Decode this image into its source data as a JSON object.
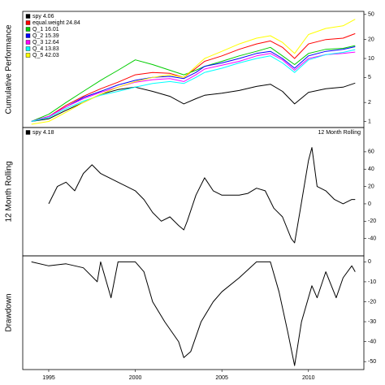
{
  "chart_data": [
    {
      "type": "line",
      "ylabel": "Cumulative Performance",
      "y_scale": "log",
      "legend": "top-left",
      "xlim": [
        1993.5,
        2013.2
      ],
      "ylim": [
        0.8,
        56
      ],
      "yticks": [
        1,
        2,
        5,
        10,
        20,
        50
      ],
      "x": [
        1994,
        1995,
        1996,
        1997,
        1998,
        1999,
        2000,
        2001,
        2002,
        2002.8,
        2003.5,
        2004,
        2005,
        2006,
        2007,
        2007.8,
        2008.5,
        2009.2,
        2010,
        2011,
        2012,
        2012.7
      ],
      "series": [
        {
          "name": "spy 4.06",
          "color": "#000000",
          "values": [
            1,
            1.1,
            1.5,
            2,
            2.7,
            3.2,
            3.5,
            3.0,
            2.5,
            1.9,
            2.3,
            2.6,
            2.8,
            3.1,
            3.6,
            3.9,
            3.0,
            1.9,
            2.9,
            3.3,
            3.5,
            4.06
          ]
        },
        {
          "name": "equal.weight 24.84",
          "color": "#ff0000",
          "values": [
            1,
            1.2,
            1.8,
            2.5,
            3.3,
            4.2,
            5.5,
            6.0,
            5.8,
            5.0,
            7.0,
            9.0,
            11,
            14,
            17,
            19,
            15,
            10,
            17,
            20,
            21,
            24.84
          ]
        },
        {
          "name": "Q_1 16.01",
          "color": "#00cc00",
          "values": [
            1,
            1.3,
            2.0,
            3.0,
            4.5,
            6.5,
            9.5,
            8.0,
            6.5,
            5.5,
            6.5,
            7.5,
            9,
            11,
            13,
            15,
            11,
            8,
            12,
            14,
            14.5,
            16.01
          ]
        },
        {
          "name": "Q_2 15.39",
          "color": "#0000ff",
          "values": [
            1,
            1.2,
            1.7,
            2.4,
            3.0,
            3.8,
            4.5,
            5.0,
            5.2,
            4.8,
            6.0,
            7.5,
            8.5,
            10,
            12,
            13,
            10,
            7,
            11,
            13,
            14,
            15.39
          ]
        },
        {
          "name": "Q_3 12.64",
          "color": "#ff00ff",
          "values": [
            1,
            1.2,
            1.7,
            2.3,
            2.9,
            3.5,
            4.2,
            4.6,
            4.8,
            4.3,
            5.5,
            6.8,
            7.8,
            9,
            11,
            12,
            9.5,
            6.5,
            10,
            11.5,
            12,
            12.64
          ]
        },
        {
          "name": "Q_4 13.83",
          "color": "#00ffff",
          "values": [
            1,
            1.15,
            1.6,
            2.1,
            2.6,
            3.0,
            3.5,
            4.0,
            4.3,
            4.0,
            5.0,
            6.0,
            7,
            8.5,
            10,
            11,
            8.5,
            6,
            9.5,
            11.5,
            12.5,
            13.83
          ]
        },
        {
          "name": "Q_5 42.03",
          "color": "#ffff00",
          "values": [
            0.9,
            1.0,
            1.4,
            2.0,
            2.7,
            3.5,
            4.3,
            5.0,
            5.5,
            5.0,
            7.5,
            10,
            13,
            17,
            21,
            23,
            18,
            12,
            24,
            30,
            33,
            42.03
          ]
        }
      ]
    },
    {
      "type": "line",
      "ylabel": "12 Month Rolling",
      "annotation": "12 Month Rolling",
      "legend": "top-left",
      "xlim": [
        1993.5,
        2013.2
      ],
      "ylim": [
        -60,
        88
      ],
      "yticks": [
        60,
        40,
        20,
        0,
        -20,
        -40
      ],
      "x": [
        1995,
        1995.5,
        1996,
        1996.5,
        1997,
        1997.5,
        1998,
        1998.5,
        1999,
        1999.5,
        2000,
        2000.5,
        2001,
        2001.5,
        2002,
        2002.5,
        2002.8,
        2003,
        2003.5,
        2004,
        2004.5,
        2005,
        2005.5,
        2006,
        2006.5,
        2007,
        2007.5,
        2008,
        2008.5,
        2009,
        2009.2,
        2009.5,
        2010,
        2010.2,
        2010.5,
        2011,
        2011.5,
        2012,
        2012.5,
        2012.7
      ],
      "series": [
        {
          "name": "spy 4.18",
          "color": "#000000",
          "values": [
            0,
            20,
            25,
            15,
            35,
            45,
            35,
            30,
            25,
            20,
            15,
            5,
            -10,
            -20,
            -15,
            -25,
            -30,
            -20,
            10,
            30,
            15,
            10,
            10,
            10,
            12,
            18,
            15,
            -5,
            -15,
            -40,
            -45,
            -10,
            50,
            65,
            20,
            15,
            5,
            0,
            5,
            5
          ]
        }
      ]
    },
    {
      "type": "line",
      "ylabel": "Drawdown",
      "xlim": [
        1993.5,
        2013.2
      ],
      "ylim": [
        -54,
        3
      ],
      "yticks": [
        0,
        -10,
        -20,
        -30,
        -40,
        -50
      ],
      "xticks": [
        1995,
        2000,
        2005,
        2010
      ],
      "x": [
        1994,
        1995,
        1996,
        1997,
        1997.8,
        1998,
        1998.6,
        1999,
        2000,
        2000.5,
        2001,
        2001.7,
        2002.5,
        2002.8,
        2003.2,
        2003.8,
        2004.5,
        2005,
        2006,
        2007,
        2007.8,
        2008.3,
        2008.8,
        2009.2,
        2009.6,
        2010.2,
        2010.5,
        2011,
        2011.6,
        2012,
        2012.5,
        2012.7
      ],
      "series": [
        {
          "color": "#000000",
          "values": [
            0,
            -2,
            -1,
            -3,
            -10,
            0,
            -18,
            0,
            0,
            -5,
            -20,
            -30,
            -40,
            -48,
            -45,
            -30,
            -20,
            -15,
            -8,
            0,
            0,
            -15,
            -35,
            -52,
            -30,
            -12,
            -18,
            -5,
            -18,
            -8,
            -2,
            -5
          ]
        }
      ]
    }
  ]
}
